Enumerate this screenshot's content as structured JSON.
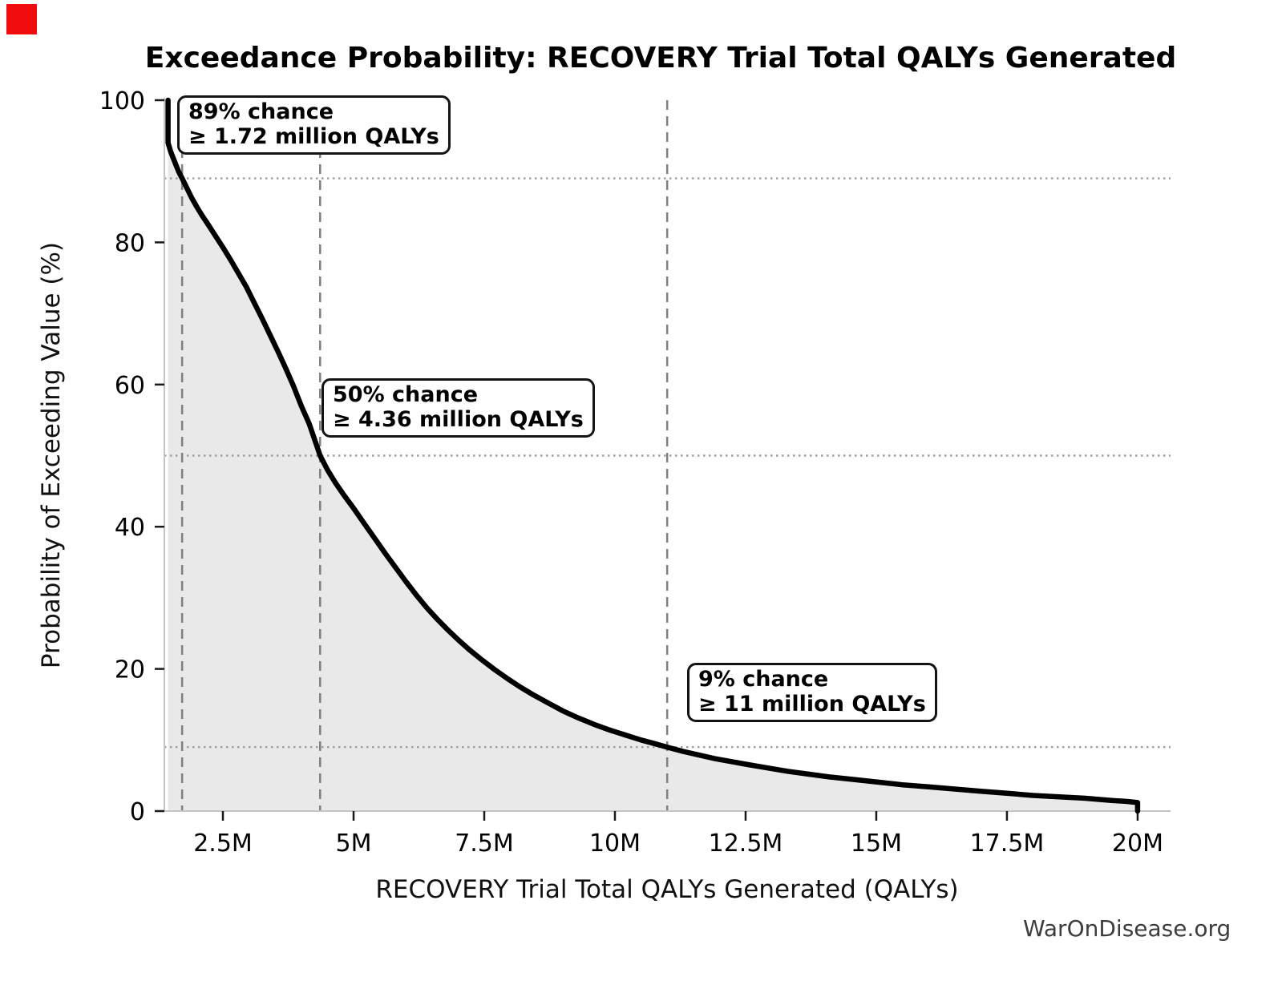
{
  "watermark": {
    "text": "WarOnDisease.org"
  },
  "colors": {
    "curve": "#000000",
    "fill": "#e9e9e9",
    "dashed_line": "#808080",
    "dotted_line": "#9e9e9e",
    "spine": "#c4c4c4",
    "tick": "#1a1a1a",
    "corner_marker": "#f10d0d"
  },
  "chart_data": {
    "type": "area",
    "title": "Exceedance Probability: RECOVERY Trial Total QALYs Generated",
    "xlabel": "RECOVERY Trial Total QALYs Generated (QALYs)",
    "ylabel": "Probability of Exceeding Value (%)",
    "x_unit": "millions of QALYs",
    "xlim": [
      1.38,
      20.63
    ],
    "ylim": [
      0,
      100
    ],
    "grid": "partial (dotted reference lines only)",
    "legend": "none",
    "x_tick_values": [
      2.5,
      5,
      7.5,
      10,
      12.5,
      15,
      17.5,
      20
    ],
    "x_tick_labels": [
      "2.5M",
      "5M",
      "7.5M",
      "10M",
      "12.5M",
      "15M",
      "17.5M",
      "20M"
    ],
    "y_tick_values": [
      0,
      20,
      40,
      60,
      80,
      100
    ],
    "y_tick_labels": [
      "0",
      "20",
      "40",
      "60",
      "80",
      "100"
    ],
    "series": [
      {
        "name": "Exceedance probability of total QALYs",
        "x_million_qalys": [
          1.45,
          1.45,
          1.5,
          1.58,
          1.65,
          1.72,
          1.8,
          1.9,
          2.0,
          2.1,
          2.2,
          2.35,
          2.5,
          2.65,
          2.8,
          2.95,
          3.1,
          3.25,
          3.4,
          3.55,
          3.7,
          3.85,
          4.0,
          4.15,
          4.36,
          4.5,
          4.65,
          4.8,
          5.0,
          5.2,
          5.4,
          5.6,
          5.8,
          6.0,
          6.2,
          6.4,
          6.6,
          6.8,
          7.0,
          7.2,
          7.45,
          7.7,
          7.95,
          8.2,
          8.45,
          8.7,
          9.0,
          9.3,
          9.6,
          9.9,
          10.2,
          10.5,
          10.75,
          11.0,
          11.3,
          11.6,
          11.9,
          12.2,
          12.5,
          12.9,
          13.3,
          13.7,
          14.1,
          14.5,
          15.0,
          15.5,
          16.0,
          16.5,
          17.0,
          17.5,
          18.0,
          18.5,
          19.0,
          19.5,
          19.8,
          20.0,
          20.0
        ],
        "probability_pct": [
          100,
          94,
          92.8,
          91.3,
          90,
          89,
          87.8,
          86.3,
          85,
          83.8,
          82.7,
          81,
          79.3,
          77.5,
          75.6,
          73.7,
          71.5,
          69.3,
          67,
          64.7,
          62.3,
          59.8,
          57,
          54.5,
          50,
          48,
          46.2,
          44.6,
          42.6,
          40.5,
          38.4,
          36.3,
          34.3,
          32.3,
          30.4,
          28.6,
          27,
          25.5,
          24.1,
          22.8,
          21.3,
          19.9,
          18.6,
          17.4,
          16.3,
          15.3,
          14.1,
          13.1,
          12.2,
          11.4,
          10.7,
          10,
          9.5,
          9,
          8.4,
          7.9,
          7.4,
          7,
          6.6,
          6.1,
          5.6,
          5.2,
          4.8,
          4.5,
          4.1,
          3.7,
          3.4,
          3.1,
          2.8,
          2.5,
          2.2,
          2.0,
          1.8,
          1.5,
          1.35,
          1.2,
          0
        ]
      }
    ],
    "annotations": [
      {
        "label_line1": "89% chance",
        "label_line2": "≥ 1.72 million QALYs",
        "x_million_qalys": 1.72,
        "probability_pct": 89
      },
      {
        "label_line1": "50% chance",
        "label_line2": "≥ 4.36 million QALYs",
        "x_million_qalys": 4.36,
        "probability_pct": 50
      },
      {
        "label_line1": "9% chance",
        "label_line2": "≥ 11 million QALYs",
        "x_million_qalys": 11,
        "probability_pct": 9
      }
    ],
    "reference_lines": {
      "vertical_dashed_x": [
        1.72,
        4.36,
        11
      ],
      "horizontal_dotted_pct": [
        89,
        50,
        9
      ]
    }
  }
}
